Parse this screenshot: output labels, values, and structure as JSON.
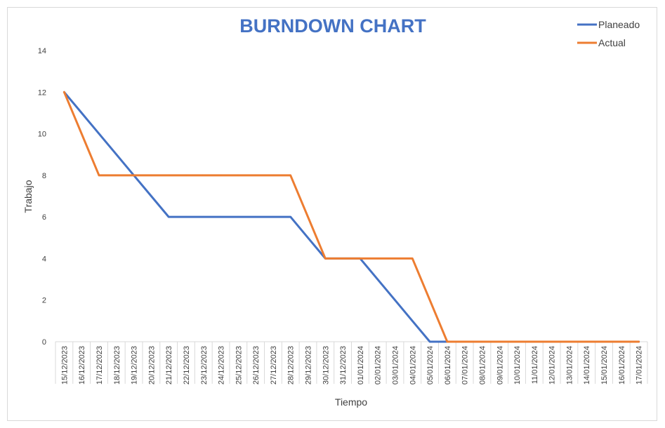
{
  "chart_data": {
    "type": "line",
    "title": "BURNDOWN CHART",
    "xlabel": "Tiempo",
    "ylabel": "Trabajo",
    "ylim": [
      0,
      14
    ],
    "yticks": [
      0,
      2,
      4,
      6,
      8,
      10,
      12,
      14
    ],
    "grid": false,
    "legend_position": "top-right",
    "categories": [
      "15/12/2023",
      "16/12/2023",
      "17/12/2023",
      "18/12/2023",
      "19/12/2023",
      "20/12/2023",
      "21/12/2023",
      "22/12/2023",
      "23/12/2023",
      "24/12/2023",
      "25/12/2023",
      "26/12/2023",
      "27/12/2023",
      "28/12/2023",
      "29/12/2023",
      "30/12/2023",
      "31/12/2023",
      "01/01/2024",
      "02/01/2024",
      "03/01/2024",
      "04/01/2024",
      "05/01/2024",
      "06/01/2024",
      "07/01/2024",
      "08/01/2024",
      "09/01/2024",
      "10/01/2024",
      "11/01/2024",
      "12/01/2024",
      "13/01/2024",
      "14/01/2024",
      "15/01/2024",
      "16/01/2024",
      "17/01/2024"
    ],
    "series": [
      {
        "name": "Planeado",
        "color": "#4472c4",
        "values": [
          12,
          11,
          10,
          9,
          8,
          7,
          6,
          6,
          6,
          6,
          6,
          6,
          6,
          6,
          5,
          4,
          4,
          4,
          3,
          2,
          1,
          0,
          0,
          0,
          0,
          0,
          0,
          0,
          0,
          0,
          0,
          0,
          0,
          0
        ]
      },
      {
        "name": "Actual",
        "color": "#ed7d31",
        "values": [
          12,
          10,
          8,
          8,
          8,
          8,
          8,
          8,
          8,
          8,
          8,
          8,
          8,
          8,
          6,
          4,
          4,
          4,
          4,
          4,
          4,
          2,
          0,
          0,
          0,
          0,
          0,
          0,
          0,
          0,
          0,
          0,
          0,
          0
        ]
      }
    ]
  }
}
